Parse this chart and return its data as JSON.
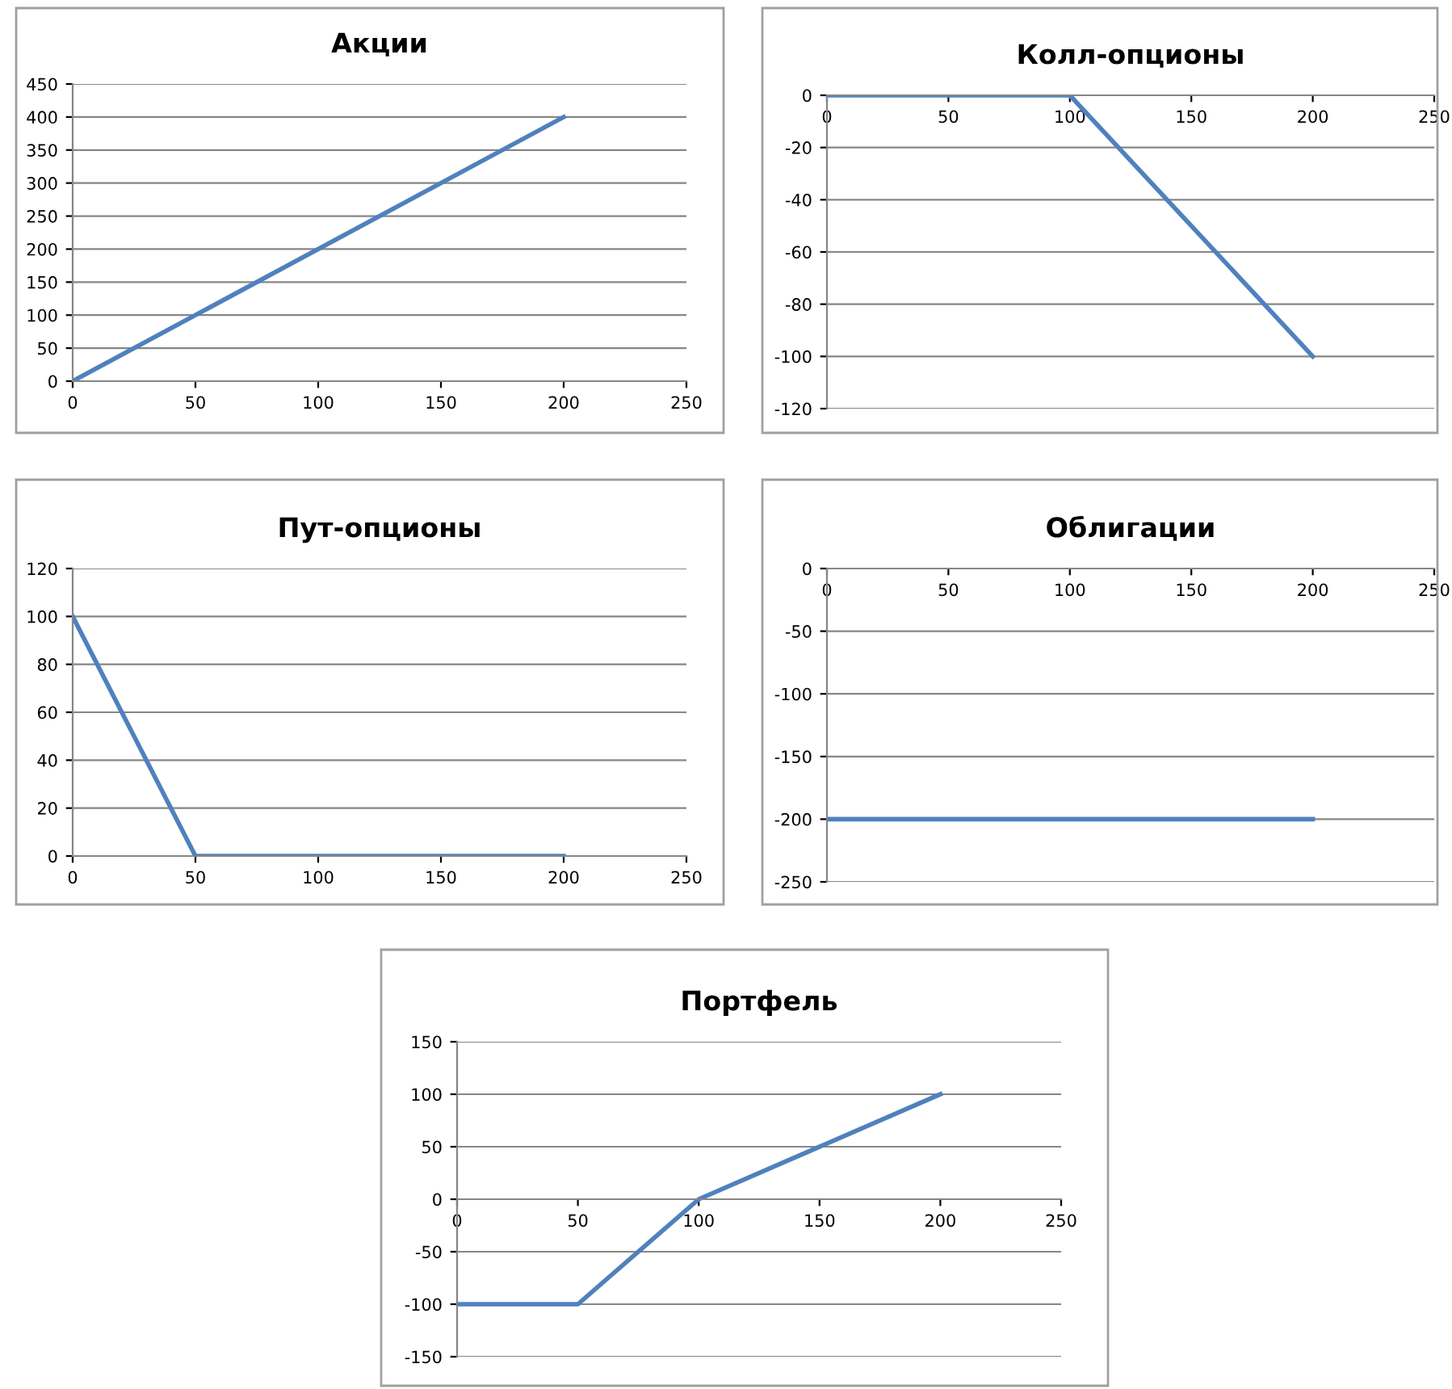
{
  "chart_data": [
    {
      "type": "line",
      "title": "Акции",
      "x": [
        0,
        200
      ],
      "values": [
        0,
        400
      ],
      "color": "#4f81bd",
      "xlim": [
        0,
        250
      ],
      "xticks": [
        0,
        50,
        100,
        150,
        200,
        250
      ],
      "ylim": [
        0,
        450
      ],
      "yticks": [
        0,
        50,
        100,
        150,
        200,
        250,
        300,
        350,
        400,
        450
      ],
      "grid": "y",
      "marker": "none"
    },
    {
      "type": "line",
      "title": "Колл-опционы",
      "x": [
        0,
        100,
        200
      ],
      "values": [
        0,
        0,
        -100
      ],
      "color": "#4f81bd",
      "xlim": [
        0,
        250
      ],
      "xticks": [
        0,
        50,
        100,
        150,
        200,
        250
      ],
      "ylim": [
        -120,
        0
      ],
      "yticks": [
        -120,
        -100,
        -80,
        -60,
        -40,
        -20,
        0
      ],
      "grid": "y",
      "marker": "none"
    },
    {
      "type": "line",
      "title": "Пут-опционы",
      "x": [
        0,
        50,
        200
      ],
      "values": [
        100,
        0,
        0
      ],
      "color": "#4f81bd",
      "xlim": [
        0,
        250
      ],
      "xticks": [
        0,
        50,
        100,
        150,
        200,
        250
      ],
      "ylim": [
        0,
        120
      ],
      "yticks": [
        0,
        20,
        40,
        60,
        80,
        100,
        120
      ],
      "grid": "y",
      "marker": "none"
    },
    {
      "type": "line",
      "title": "Облигации",
      "x": [
        0,
        200
      ],
      "values": [
        -200,
        -200
      ],
      "color": "#4f81bd",
      "xlim": [
        0,
        250
      ],
      "xticks": [
        0,
        50,
        100,
        150,
        200,
        250
      ],
      "ylim": [
        -250,
        0
      ],
      "yticks": [
        -250,
        -200,
        -150,
        -100,
        -50,
        0
      ],
      "grid": "y",
      "marker": "none"
    },
    {
      "type": "line",
      "title": "Портфель",
      "x": [
        0,
        50,
        100,
        200
      ],
      "values": [
        -100,
        -100,
        0,
        100
      ],
      "color": "#4f81bd",
      "xlim": [
        0,
        250
      ],
      "xticks": [
        0,
        50,
        100,
        150,
        200,
        250
      ],
      "ylim": [
        -150,
        150
      ],
      "yticks": [
        -150,
        -100,
        -50,
        0,
        50,
        100,
        150
      ],
      "grid": "y",
      "marker": "none"
    }
  ]
}
